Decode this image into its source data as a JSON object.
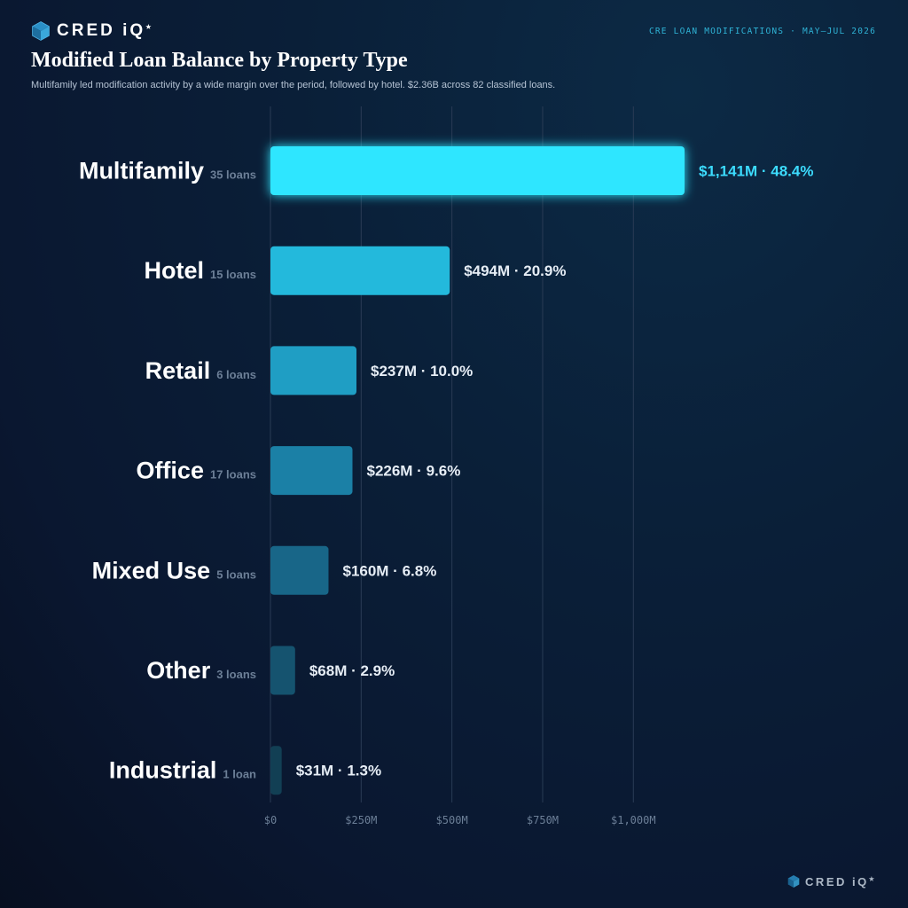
{
  "brand": {
    "name": "CRED iQ",
    "footer_name": "CRED iQ",
    "mark": "★"
  },
  "header": {
    "kicker": "CRE LOAN MODIFICATIONS · MAY–JUL 2026",
    "title": "Modified Loan Balance by Property Type",
    "subtitle": "Multifamily led modification activity by a wide margin over the period, followed by hotel. $2.36B across 82 classified loans."
  },
  "colors": {
    "highlight": "#2ee6ff",
    "bars": [
      "#2ee6ff",
      "#23b9dc",
      "#1f9ec4",
      "#1b80a6",
      "#186688",
      "#15536f",
      "#123f54"
    ]
  },
  "chart_data": {
    "type": "bar",
    "orientation": "horizontal",
    "categories": [
      "Multifamily",
      "Hotel",
      "Retail",
      "Office",
      "Mixed Use",
      "Other",
      "Industrial"
    ],
    "counts": [
      "35 loans",
      "15 loans",
      "6 loans",
      "17 loans",
      "5 loans",
      "3 loans",
      "1 loan"
    ],
    "values": [
      1141,
      494,
      237,
      226,
      160,
      68,
      31
    ],
    "value_labels": [
      "$1,141M · 48.4%",
      "$494M · 20.9%",
      "$237M · 10.0%",
      "$226M · 9.6%",
      "$160M · 6.8%",
      "$68M · 2.9%",
      "$31M · 1.3%"
    ],
    "xlim": [
      0,
      1141
    ],
    "xticks": [
      0,
      250,
      500,
      750,
      1000
    ],
    "xtick_labels": [
      "$0",
      "$250M",
      "$500M",
      "$750M",
      "$1,000M"
    ],
    "grid": true
  }
}
